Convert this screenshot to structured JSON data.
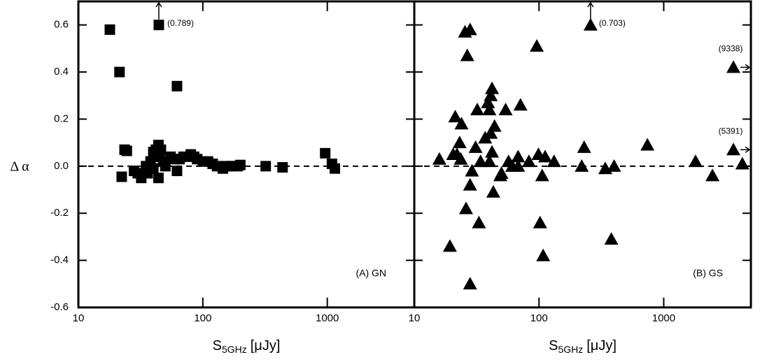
{
  "chart_data": [
    {
      "type": "scatter",
      "marker": "square",
      "color": "#000000",
      "xscale": "log",
      "y_label": "Δ α",
      "x_label": {
        "main": "S",
        "sub": "5GHz",
        "unit": "[μJy]"
      },
      "xlim": [
        10,
        5000
      ],
      "ylim": [
        -0.6,
        0.7
      ],
      "xticks": [
        10,
        100,
        1000
      ],
      "yticks": [
        -0.6,
        -0.4,
        -0.2,
        {
          "value": 0,
          "label": "0.0"
        },
        0.2,
        0.4,
        0.6
      ],
      "hline": 0,
      "panel_label": "(A) GN",
      "x": [
        17.9,
        21.4,
        23.5,
        24.5,
        22.3,
        62,
        320,
        437,
        962,
        1090,
        1150,
        38,
        40,
        42,
        44,
        46,
        45,
        48,
        44,
        50,
        55,
        60,
        62,
        65,
        70,
        80,
        85,
        90,
        100,
        110,
        120,
        130,
        145,
        155,
        170,
        190,
        200,
        32,
        30,
        28,
        35,
        36,
        40
      ],
      "y": [
        0.58,
        0.4,
        0.07,
        0.065,
        -0.045,
        0.34,
        0.0,
        -0.005,
        0.055,
        0.01,
        -0.01,
        0.02,
        0.06,
        0.07,
        0.09,
        0.07,
        0.04,
        0.02,
        -0.05,
        0.0,
        0.04,
        0.03,
        -0.02,
        0.03,
        0.04,
        0.05,
        0.04,
        0.03,
        0.02,
        0.02,
        0.01,
        0.0,
        -0.01,
        0.0,
        0.0,
        0.0,
        0.005,
        -0.05,
        -0.03,
        -0.02,
        0.0,
        -0.03,
        -0.01
      ],
      "offscale": [
        {
          "x": 44.3,
          "y": 0.6,
          "label": "(0.789)",
          "arrow": "up"
        }
      ]
    },
    {
      "type": "scatter",
      "marker": "triangle",
      "color": "#000000",
      "xscale": "log",
      "x_label": {
        "main": "S",
        "sub": "5GHz",
        "unit": "[μJy]"
      },
      "xlim": [
        10,
        5000
      ],
      "ylim": [
        -0.6,
        0.7
      ],
      "xticks": [
        10,
        100,
        1000
      ],
      "yticks": [
        -0.6,
        -0.4,
        -0.2,
        0,
        0.2,
        0.4,
        0.6
      ],
      "hline": 0,
      "panel_label": "(B) GS",
      "x": [
        15.9,
        19.3,
        21.3,
        20.5,
        23.1,
        23.9,
        26.6,
        25.5,
        28,
        96,
        4270,
        2460,
        1800,
        740,
        400,
        380,
        340,
        230,
        220,
        132,
        102,
        108,
        106,
        99,
        112,
        71,
        68,
        68,
        54,
        50,
        49,
        43,
        44,
        42,
        41,
        40,
        41,
        40,
        42,
        39,
        37,
        34,
        33,
        32,
        31,
        29,
        28,
        26,
        28,
        22,
        23.6,
        83,
        61,
        57
      ],
      "y": [
        0.03,
        -0.34,
        0.21,
        0.05,
        0.1,
        0.18,
        0.47,
        0.57,
        0.58,
        0.51,
        0.01,
        -0.04,
        0.02,
        0.09,
        0.0,
        -0.31,
        -0.01,
        0.08,
        0.0,
        0.02,
        -0.24,
        -0.38,
        -0.04,
        0.05,
        0.04,
        0.26,
        0.04,
        0.0,
        0.24,
        -0.03,
        -0.04,
        -0.11,
        0.17,
        0.33,
        0.3,
        0.24,
        0.14,
        0.02,
        0.06,
        0.27,
        0.12,
        0.02,
        -0.24,
        0.24,
        0.08,
        -0.02,
        -0.08,
        -0.18,
        -0.5,
        0.05,
        0.03,
        0.02,
        0.0,
        0.02
      ],
      "offscale": [
        {
          "x": 259,
          "y": 0.6,
          "label": "(0.703)",
          "arrow": "up"
        },
        {
          "x": 3620,
          "y": 0.42,
          "label": "(9338)",
          "arrow": "right"
        },
        {
          "x": 3620,
          "y": 0.07,
          "label": "(5391)",
          "arrow": "right"
        }
      ]
    }
  ]
}
